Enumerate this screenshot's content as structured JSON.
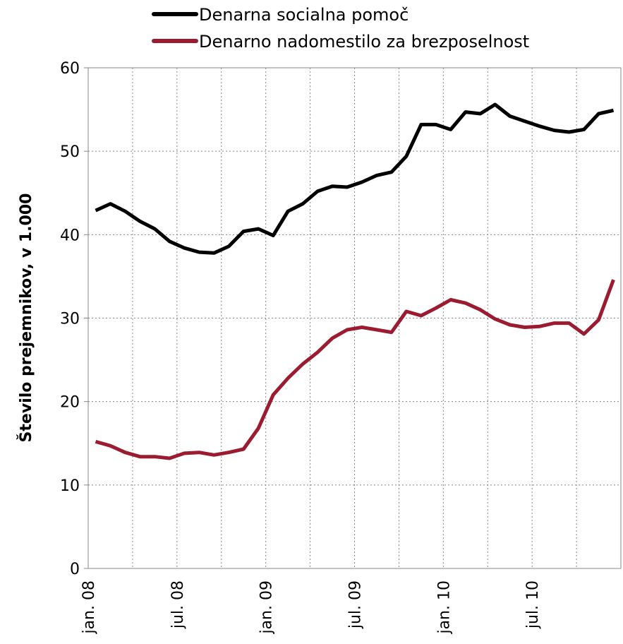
{
  "chart_data": {
    "type": "line",
    "y_label": "Število prejemnikov, v 1.000",
    "categories": [
      "jan. 08",
      null,
      null,
      null,
      null,
      null,
      "jul. 08",
      null,
      null,
      null,
      null,
      null,
      "jan. 09",
      null,
      null,
      null,
      null,
      null,
      "jul. 09",
      null,
      null,
      null,
      null,
      null,
      "jan. 10",
      null,
      null,
      null,
      null,
      null,
      "jul. 10",
      null,
      null,
      null,
      null,
      null
    ],
    "series": [
      {
        "name": "Denarna socialna pomoč",
        "color": "#000000",
        "values": [
          42.9,
          43.7,
          42.8,
          41.6,
          40.7,
          39.2,
          38.4,
          37.9,
          37.8,
          38.6,
          40.4,
          40.7,
          39.9,
          42.8,
          43.7,
          45.2,
          45.8,
          45.7,
          46.3,
          47.1,
          47.5,
          49.4,
          53.2,
          53.2,
          52.6,
          54.7,
          54.5,
          55.6,
          54.2,
          53.6,
          53.0,
          52.5,
          52.3,
          52.6,
          54.5,
          54.9
        ]
      },
      {
        "name": "Denarno nadomestilo za brezposelnost",
        "color": "#9b1b30",
        "values": [
          15.2,
          14.7,
          13.9,
          13.4,
          13.4,
          13.2,
          13.8,
          13.9,
          13.6,
          13.9,
          14.3,
          16.8,
          20.8,
          22.8,
          24.5,
          25.9,
          27.6,
          28.6,
          28.9,
          28.6,
          28.3,
          30.8,
          30.3,
          31.2,
          32.2,
          31.8,
          31.0,
          29.9,
          29.2,
          28.9,
          29.0,
          29.4,
          29.4,
          28.1,
          29.8,
          34.6
        ]
      }
    ],
    "ylim": [
      0,
      60
    ],
    "yticks": [
      0,
      10,
      20,
      30,
      40,
      50,
      60
    ],
    "grid": true
  }
}
